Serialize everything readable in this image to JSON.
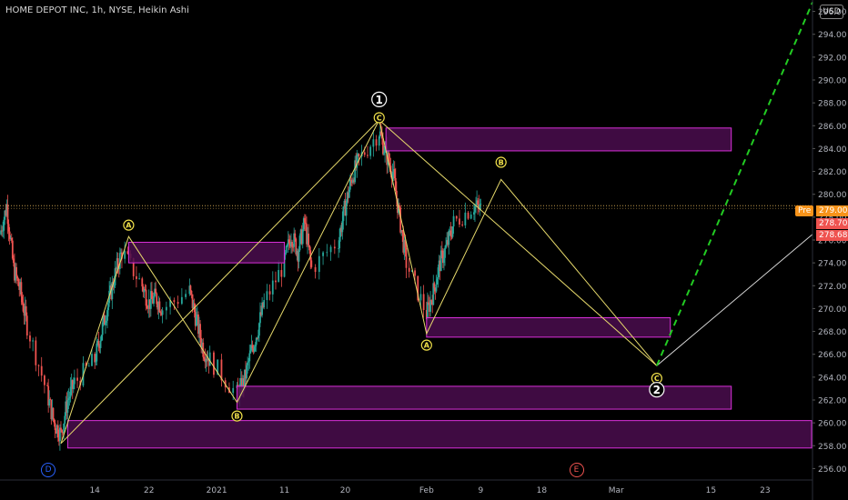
{
  "header": {
    "symbol_title": "HOME DEPOT INC, 1h, NYSE, Heikin Ashi",
    "currency": "USD"
  },
  "colors": {
    "background": "#000000",
    "axis_text": "#b2b5be",
    "zone_fill": "#4a0d4e",
    "zone_border": "#d930d9",
    "wave_line": "#e6d96b",
    "projection_line": "#d8d8d8",
    "forecast_dash": "#22cc22",
    "candle_up": "#26a69a",
    "candle_down": "#ef5350",
    "price_line": "#c8a050",
    "pre_tag": "#f7931a",
    "last_tag": "#ef5350",
    "label_yellow": "#f0e04a",
    "label_white": "#ffffff"
  },
  "price_tags": {
    "pre_label": "Pre",
    "pre_value": "279.00",
    "last_value": "278.70",
    "second_value": "278.68"
  },
  "events": [
    {
      "letter": "D",
      "color": "#2962ff",
      "x": "Dec 7"
    },
    {
      "letter": "E",
      "color": "#ef5350",
      "x": "Feb 23"
    }
  ],
  "chart_data": {
    "type": "candlestick",
    "chart_style": "Heikin Ashi",
    "title": "HOME DEPOT INC, 1h, NYSE, Heikin Ashi",
    "x_axis": {
      "ticks": [
        "14",
        "22",
        "2021",
        "11",
        "20",
        "Feb",
        "9",
        "18",
        "Mar",
        "15",
        "23"
      ],
      "range": [
        "Nov 30, 2020",
        "Mar 30, 2021"
      ]
    },
    "y_axis": {
      "side": "right",
      "range": [
        255,
        297
      ],
      "ticks": [
        "256.00",
        "258.00",
        "260.00",
        "262.00",
        "264.00",
        "266.00",
        "268.00",
        "270.00",
        "272.00",
        "274.00",
        "276.00",
        "278.00",
        "280.00",
        "282.00",
        "284.00",
        "286.00",
        "288.00",
        "290.00",
        "292.00",
        "294.00",
        "296.00"
      ]
    },
    "grid": false,
    "current_price": 279.0,
    "price_path": [
      [
        "Nov 30",
        276.5
      ],
      [
        "Dec 1",
        279.0
      ],
      [
        "Dec 2",
        273.5
      ],
      [
        "Dec 3",
        271.5
      ],
      [
        "Dec 4",
        268.5
      ],
      [
        "Dec 7",
        262.5
      ],
      [
        "Dec 8",
        260.0
      ],
      [
        "Dec 9",
        259.0
      ],
      [
        "Dec 10",
        262.0
      ],
      [
        "Dec 11",
        263.5
      ],
      [
        "Dec 14",
        265.5
      ],
      [
        "Dec 15",
        268.0
      ],
      [
        "Dec 16",
        270.5
      ],
      [
        "Dec 17",
        273.0
      ],
      [
        "Dec 18",
        275.0
      ],
      [
        "Dec 21",
        272.0
      ],
      [
        "Dec 22",
        270.5
      ],
      [
        "Dec 23",
        271.0
      ],
      [
        "Dec 24",
        270.0
      ],
      [
        "Dec 28",
        271.5
      ],
      [
        "Dec 29",
        269.0
      ],
      [
        "Dec 30",
        266.5
      ],
      [
        "Dec 31",
        265.5
      ],
      [
        "Jan 4",
        262.5
      ],
      [
        "Jan 5",
        263.5
      ],
      [
        "Jan 6",
        266.0
      ],
      [
        "Jan 7",
        268.0
      ],
      [
        "Jan 8",
        270.5
      ],
      [
        "Jan 11",
        274.0
      ],
      [
        "Jan 12",
        276.5
      ],
      [
        "Jan 13",
        275.0
      ],
      [
        "Jan 14",
        277.5
      ],
      [
        "Jan 15",
        273.5
      ],
      [
        "Jan 19",
        276.0
      ],
      [
        "Jan 20",
        279.0
      ],
      [
        "Jan 21",
        281.5
      ],
      [
        "Jan 22",
        283.0
      ],
      [
        "Jan 25",
        285.5
      ],
      [
        "Jan 26",
        283.5
      ],
      [
        "Jan 27",
        282.0
      ],
      [
        "Jan 28",
        278.0
      ],
      [
        "Jan 29",
        274.0
      ],
      [
        "Feb 1",
        269.5
      ],
      [
        "Feb 2",
        271.5
      ],
      [
        "Feb 3",
        274.0
      ],
      [
        "Feb 4",
        275.5
      ],
      [
        "Feb 5",
        277.5
      ],
      [
        "Feb 8",
        279.0
      ],
      [
        "Feb 9",
        278.7
      ]
    ],
    "zones": [
      {
        "name": "resistance-zone-top",
        "x": [
          "Jan 26",
          "Mar 18"
        ],
        "y": [
          283.8,
          285.8
        ]
      },
      {
        "name": "zone-wave-a-left",
        "x": [
          "Dec 19",
          "Jan 11"
        ],
        "y": [
          274.0,
          275.8
        ]
      },
      {
        "name": "zone-feb-support",
        "x": [
          "Feb 1",
          "Mar 9"
        ],
        "y": [
          267.5,
          269.2
        ]
      },
      {
        "name": "zone-jan-support",
        "x": [
          "Jan 4",
          "Mar 18"
        ],
        "y": [
          261.2,
          263.2
        ]
      },
      {
        "name": "zone-bottom-support",
        "x": [
          "Dec 10",
          "Mar 30"
        ],
        "y": [
          257.8,
          260.2
        ]
      }
    ],
    "wave_paths": [
      {
        "name": "wave-1-outer",
        "points": [
          [
            "Dec 9",
            258.2
          ],
          [
            "Dec 19",
            276.3
          ],
          [
            "Jan 4",
            261.8
          ],
          [
            "Jan 25",
            286.5
          ]
        ]
      },
      {
        "name": "wave-1-inner",
        "points": [
          [
            "Dec 9",
            258.2
          ],
          [
            "Jan 25",
            286.5
          ]
        ]
      },
      {
        "name": "wave-2-outer",
        "points": [
          [
            "Jan 25",
            286.5
          ],
          [
            "Feb 1",
            267.8
          ],
          [
            "Feb 12",
            281.3
          ],
          [
            "Mar 7",
            265.0
          ]
        ]
      },
      {
        "name": "wave-2-inner",
        "points": [
          [
            "Jan 25",
            286.5
          ],
          [
            "Mar 7",
            265.0
          ]
        ]
      }
    ],
    "projection_line": [
      [
        "Mar 7",
        265.0
      ],
      [
        "Mar 30",
        276.5
      ]
    ],
    "forecast_dashed": [
      [
        "Mar 7",
        265.0
      ],
      [
        "Mar 30",
        296.8
      ]
    ],
    "labels": [
      {
        "text": "1",
        "style": "circle-white",
        "x": "Jan 25",
        "y": 288.3
      },
      {
        "text": "C",
        "style": "circle-yellow",
        "x": "Jan 25",
        "y": 286.7
      },
      {
        "text": "A",
        "style": "circle-yellow",
        "x": "Dec 19",
        "y": 277.3
      },
      {
        "text": "B",
        "style": "circle-yellow",
        "x": "Jan 4",
        "y": 260.6
      },
      {
        "text": "A",
        "style": "circle-yellow",
        "x": "Feb 1",
        "y": 266.8
      },
      {
        "text": "B",
        "style": "circle-yellow",
        "x": "Feb 12",
        "y": 282.8
      },
      {
        "text": "C",
        "style": "circle-yellow",
        "x": "Mar 7",
        "y": 263.9
      },
      {
        "text": "2",
        "style": "circle-white",
        "x": "Mar 7",
        "y": 262.9
      }
    ]
  }
}
